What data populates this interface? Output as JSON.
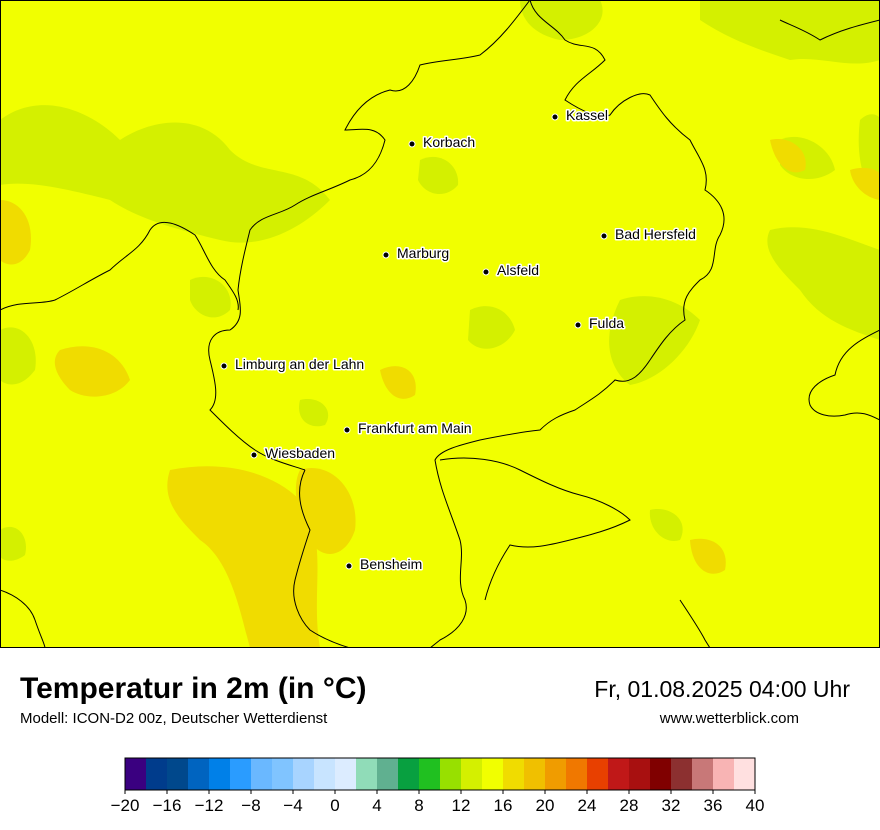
{
  "map": {
    "base_color": "#f1ff00",
    "cities": [
      {
        "name": "Kassel"
      },
      {
        "name": "Korbach"
      },
      {
        "name": "Bad Hersfeld"
      },
      {
        "name": "Marburg"
      },
      {
        "name": "Alsfeld"
      },
      {
        "name": "Fulda"
      },
      {
        "name": "Limburg an der Lahn"
      },
      {
        "name": "Frankfurt am Main"
      },
      {
        "name": "Wiesbaden"
      },
      {
        "name": "Bensheim"
      }
    ]
  },
  "footer": {
    "title": "Temperatur in 2m (in °C)",
    "subtitle": "Modell: ICON-D2 00z, Deutscher Wetterdienst",
    "datetime": "Fr, 01.08.2025 04:00 Uhr",
    "website": "www.wetterblick.com"
  },
  "legend": {
    "tick_labels": [
      "−20",
      "−16",
      "−12",
      "−8",
      "−4",
      "0",
      "4",
      "8",
      "12",
      "16",
      "20",
      "24",
      "28",
      "32",
      "36",
      "40"
    ],
    "colors": [
      "#3a0080",
      "#003c8c",
      "#00488c",
      "#0064c0",
      "#0080e8",
      "#2a9cff",
      "#6ab8ff",
      "#80c4ff",
      "#a8d4ff",
      "#c8e4ff",
      "#dcecff",
      "#90dcb8",
      "#60b090",
      "#08a040",
      "#20c020",
      "#98e000",
      "#d4f000",
      "#f1ff00",
      "#f0dc00",
      "#f0c000",
      "#f09c00",
      "#f07800",
      "#e84000",
      "#c01818",
      "#a81010",
      "#800000",
      "#8c3030",
      "#c87878",
      "#f8b4b4",
      "#ffe0e0"
    ]
  }
}
